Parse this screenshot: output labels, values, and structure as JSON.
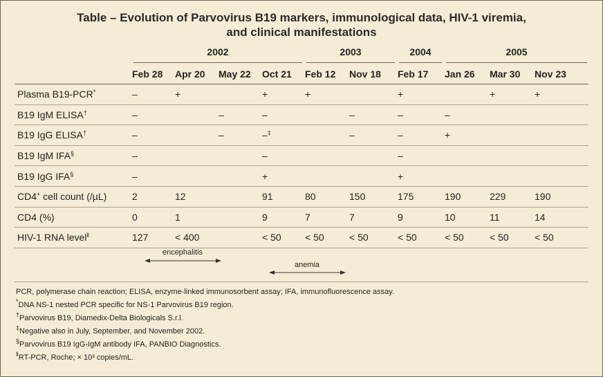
{
  "title": [
    "Table – Evolution of Parvovirus B19 markers, immunological data, HIV-1 viremia,",
    "and clinical manifestations"
  ],
  "table": {
    "years": [
      {
        "label": "2002",
        "span": 4
      },
      {
        "label": "2003",
        "span": 2
      },
      {
        "label": "2004",
        "span": 1
      },
      {
        "label": "2005",
        "span": 3
      }
    ],
    "dates": [
      "Feb 28",
      "Apr 20",
      "May 22",
      "Oct 21",
      "Feb 12",
      "Nov 18",
      "Feb 17",
      "Jan 26",
      "Mar 30",
      "Nov 23"
    ],
    "rows": [
      {
        "label": {
          "text": "Plasma B19-PCR",
          "sup": "*"
        },
        "cells": [
          "–",
          "+",
          null,
          "+",
          "+",
          null,
          "+",
          null,
          "+",
          "+"
        ]
      },
      {
        "label": {
          "text": "B19 IgM ELISA",
          "sup": "†"
        },
        "cells": [
          "–",
          null,
          "–",
          "–",
          null,
          "–",
          "–",
          "–",
          null,
          null
        ]
      },
      {
        "label": {
          "text": "B19 IgG ELISA",
          "sup": "†"
        },
        "cells": [
          "–",
          null,
          "–",
          {
            "text": "–",
            "sup": "‡"
          },
          null,
          "–",
          "–",
          "+",
          null,
          null
        ]
      },
      {
        "label": {
          "text": "B19 IgM IFA",
          "sup": "§"
        },
        "cells": [
          "–",
          null,
          null,
          "–",
          null,
          null,
          "–",
          null,
          null,
          null
        ]
      },
      {
        "label": {
          "text": "B19 IgG IFA",
          "sup": "§"
        },
        "cells": [
          "–",
          null,
          null,
          "+",
          null,
          null,
          "+",
          null,
          null,
          null
        ]
      },
      {
        "label": {
          "text": "CD4",
          "sup": "+",
          "after": " cell count (/µL)"
        },
        "cells": [
          2,
          12,
          null,
          91,
          80,
          150,
          175,
          190,
          229,
          190
        ]
      },
      {
        "label": {
          "text": "CD4 (%)"
        },
        "cells": [
          0,
          1,
          null,
          9,
          7,
          7,
          9,
          10,
          11,
          14
        ]
      },
      {
        "label": {
          "text": "HIV-1 RNA level",
          "sup": "‖"
        },
        "cells": [
          127,
          "< 400",
          null,
          "< 50",
          "< 50",
          "< 50",
          "< 50",
          "< 50",
          "< 50",
          "< 50"
        ]
      }
    ]
  },
  "events": [
    "encephalitis",
    "anemia"
  ],
  "footnotes": [
    {
      "text": "PCR, polymerase chain reaction; ELISA, enzyme-linked immunosorbent assay; IFA, immunofluorescence assay."
    },
    {
      "mark": "*",
      "text": "DNA NS-1 nested PCR specific for NS-1 Parvovirus B19 region."
    },
    {
      "mark": "†",
      "text": "Parvovirus B19, Diamedix-Delta Biologicals S.r.l."
    },
    {
      "mark": "‡",
      "text": "Negative also in July, September, and November 2002."
    },
    {
      "mark": "§",
      "text": "Parvovirus B19 IgG-IgM antibody IFA, PANBIO Diagnostics."
    },
    {
      "mark": "‖",
      "text": "RT-PCR, Roche; × 10³ copies/mL."
    }
  ]
}
